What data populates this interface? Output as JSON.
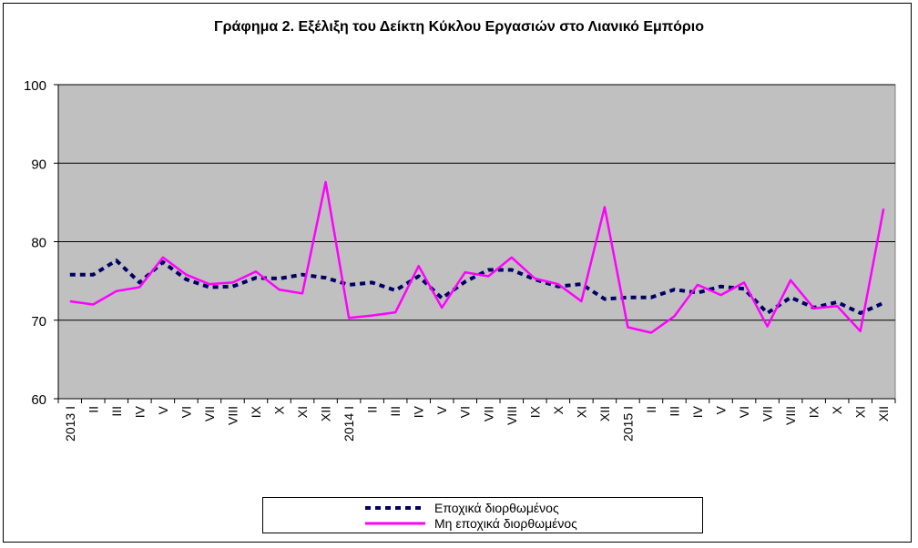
{
  "chart_data": {
    "type": "line",
    "title": "Γράφημα 2. Εξέλιξη του Δείκτη Κύκλου Εργασιών στο Λιανικό Εμπόριο",
    "ylim": [
      60,
      100
    ],
    "yticks": [
      60,
      70,
      80,
      90,
      100
    ],
    "grid": true,
    "legend_position": "bottom",
    "plot_background": "#C0C0C0",
    "categories": [
      "I",
      "II",
      "III",
      "IV",
      "V",
      "VI",
      "VII",
      "VIII",
      "IX",
      "X",
      "XI",
      "XII",
      "I",
      "II",
      "III",
      "IV",
      "V",
      "VI",
      "VII",
      "VIII",
      "IX",
      "X",
      "XI",
      "XII",
      "I",
      "II",
      "III",
      "IV",
      "V",
      "VI",
      "VII",
      "VIII",
      "IX",
      "X",
      "XI",
      "XII"
    ],
    "year_labels": [
      {
        "index": 0,
        "text": "2013"
      },
      {
        "index": 12,
        "text": "2014"
      },
      {
        "index": 24,
        "text": "2015"
      }
    ],
    "series": [
      {
        "name": "Εποχικά διορθωμένος",
        "color": "#000066",
        "style": "dashed",
        "values": [
          75.8,
          75.8,
          77.6,
          74.8,
          77.4,
          75.2,
          74.2,
          74.3,
          75.4,
          75.3,
          75.8,
          75.4,
          74.5,
          74.8,
          73.8,
          75.6,
          72.8,
          74.9,
          76.4,
          76.4,
          75.2,
          74.3,
          74.6,
          72.7,
          72.9,
          72.9,
          73.9,
          73.5,
          74.3,
          74.0,
          70.9,
          72.9,
          71.6,
          72.3,
          70.9,
          72.2
        ]
      },
      {
        "name": "Μη εποχικά διορθωμένος",
        "color": "#FF00FF",
        "style": "solid",
        "values": [
          72.4,
          72.0,
          73.7,
          74.2,
          78.0,
          75.8,
          74.6,
          74.8,
          76.2,
          73.9,
          73.4,
          87.6,
          70.3,
          70.6,
          71.0,
          76.9,
          71.6,
          76.1,
          75.6,
          78.0,
          75.3,
          74.6,
          72.4,
          84.4,
          69.1,
          68.4,
          70.5,
          74.5,
          73.2,
          74.8,
          69.2,
          75.1,
          71.5,
          71.8,
          68.6,
          84.2
        ]
      }
    ]
  }
}
